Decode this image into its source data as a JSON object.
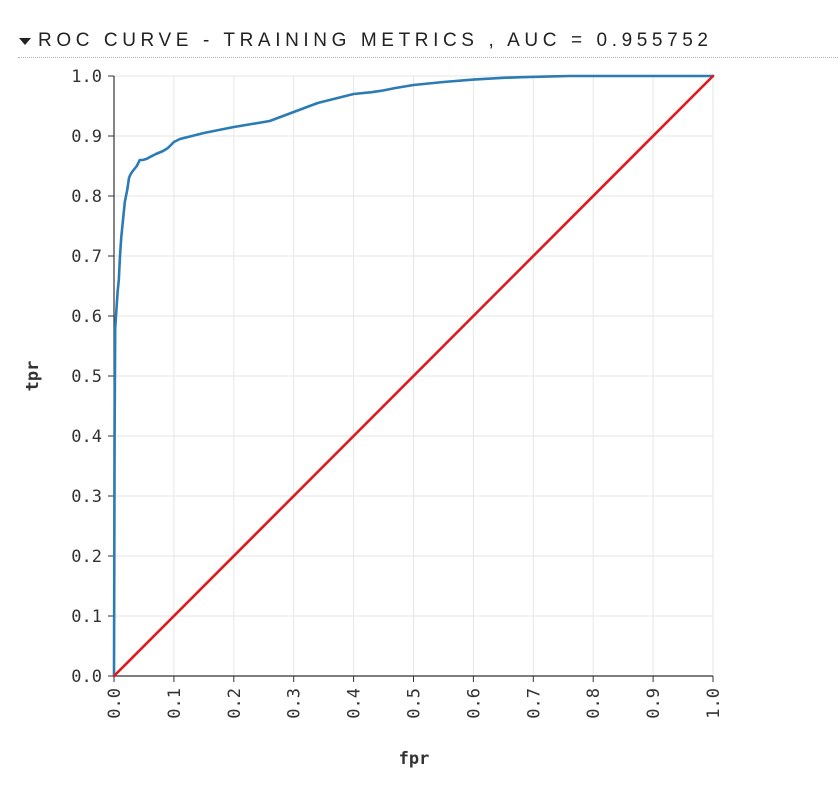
{
  "header": {
    "title": "ROC CURVE - TRAINING METRICS , AUC = 0.955752",
    "toggle_icon": "caret-down-icon"
  },
  "chart_data": {
    "type": "line",
    "title": "ROC CURVE - TRAINING METRICS , AUC = 0.955752",
    "xlabel": "fpr",
    "ylabel": "tpr",
    "xlim": [
      0,
      1
    ],
    "ylim": [
      0,
      1
    ],
    "x_ticks": [
      "0.0",
      "0.1",
      "0.2",
      "0.3",
      "0.4",
      "0.5",
      "0.6",
      "0.7",
      "0.8",
      "0.9",
      "1.0"
    ],
    "y_ticks": [
      "0.0",
      "0.1",
      "0.2",
      "0.3",
      "0.4",
      "0.5",
      "0.6",
      "0.7",
      "0.8",
      "0.9",
      "1.0"
    ],
    "grid": true,
    "colors": {
      "roc": "#2b7bb5",
      "diagonal": "#e0191e",
      "grid": "#e6e6e6",
      "axis": "#333333"
    },
    "series": [
      {
        "x": [
          0,
          0.001,
          0.002,
          0.004,
          0.006,
          0.008,
          0.01,
          0.012,
          0.014,
          0.016,
          0.018,
          0.02,
          0.022,
          0.025,
          0.027,
          0.03,
          0.034,
          0.038,
          0.043,
          0.048,
          0.055,
          0.062,
          0.07,
          0.082,
          0.09,
          0.1,
          0.11,
          0.13,
          0.15,
          0.175,
          0.2,
          0.23,
          0.26,
          0.3,
          0.34,
          0.36,
          0.38,
          0.4,
          0.43,
          0.45,
          0.47,
          0.5,
          0.55,
          0.6,
          0.65,
          0.68,
          0.72,
          0.76,
          0.8,
          1.0
        ],
        "y": [
          0,
          0.4,
          0.58,
          0.61,
          0.64,
          0.66,
          0.7,
          0.73,
          0.75,
          0.77,
          0.79,
          0.8,
          0.81,
          0.83,
          0.835,
          0.84,
          0.845,
          0.85,
          0.86,
          0.86,
          0.862,
          0.866,
          0.87,
          0.875,
          0.88,
          0.89,
          0.895,
          0.9,
          0.905,
          0.91,
          0.915,
          0.92,
          0.925,
          0.94,
          0.955,
          0.96,
          0.965,
          0.97,
          0.973,
          0.976,
          0.98,
          0.985,
          0.99,
          0.994,
          0.997,
          0.998,
          0.999,
          1.0,
          1.0,
          1.0
        ]
      },
      {
        "x": [
          0,
          1
        ],
        "y": [
          0,
          1
        ]
      }
    ]
  }
}
